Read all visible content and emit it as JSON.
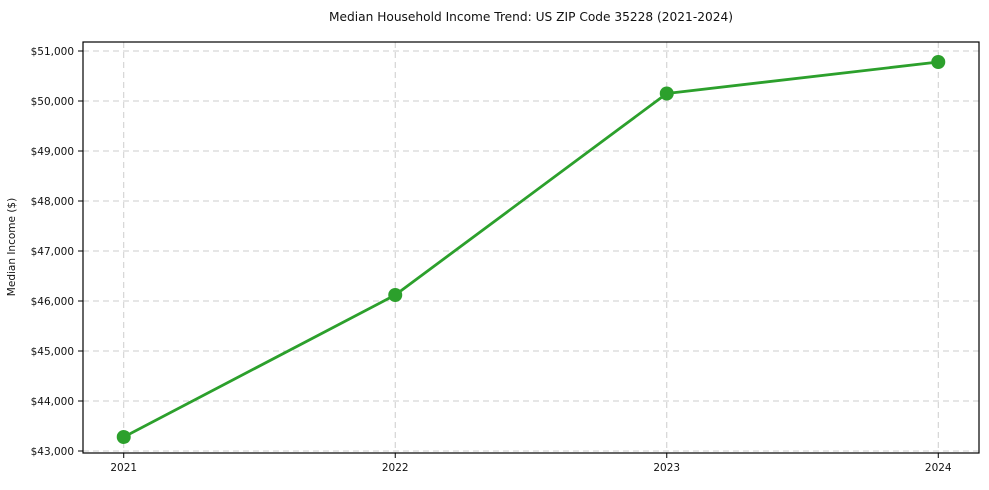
{
  "chart_data": {
    "type": "line",
    "title": "Median Household Income Trend: US ZIP Code 35228 (2021-2024)",
    "xlabel": "",
    "ylabel": "Median Income ($)",
    "x": [
      2021,
      2022,
      2023,
      2024
    ],
    "x_tick_labels": [
      "2021",
      "2022",
      "2023",
      "2024"
    ],
    "values": [
      43280,
      46120,
      50150,
      50780
    ],
    "y_ticks": [
      43000,
      44000,
      45000,
      46000,
      47000,
      48000,
      49000,
      50000,
      51000
    ],
    "y_tick_labels": [
      "$43,000",
      "$44,000",
      "$45,000",
      "$46,000",
      "$47,000",
      "$48,000",
      "$49,000",
      "$50,000",
      "$51,000"
    ],
    "xlim": [
      2020.85,
      2024.15
    ],
    "ylim": [
      42960,
      51180
    ],
    "grid": true,
    "grid_style": "dashed",
    "legend": false,
    "colors": {
      "line": "#2ca02c",
      "marker": "#2ca02c",
      "grid": "#cccccc",
      "frame": "#000000",
      "text": "#111111",
      "background": "#ffffff"
    }
  }
}
